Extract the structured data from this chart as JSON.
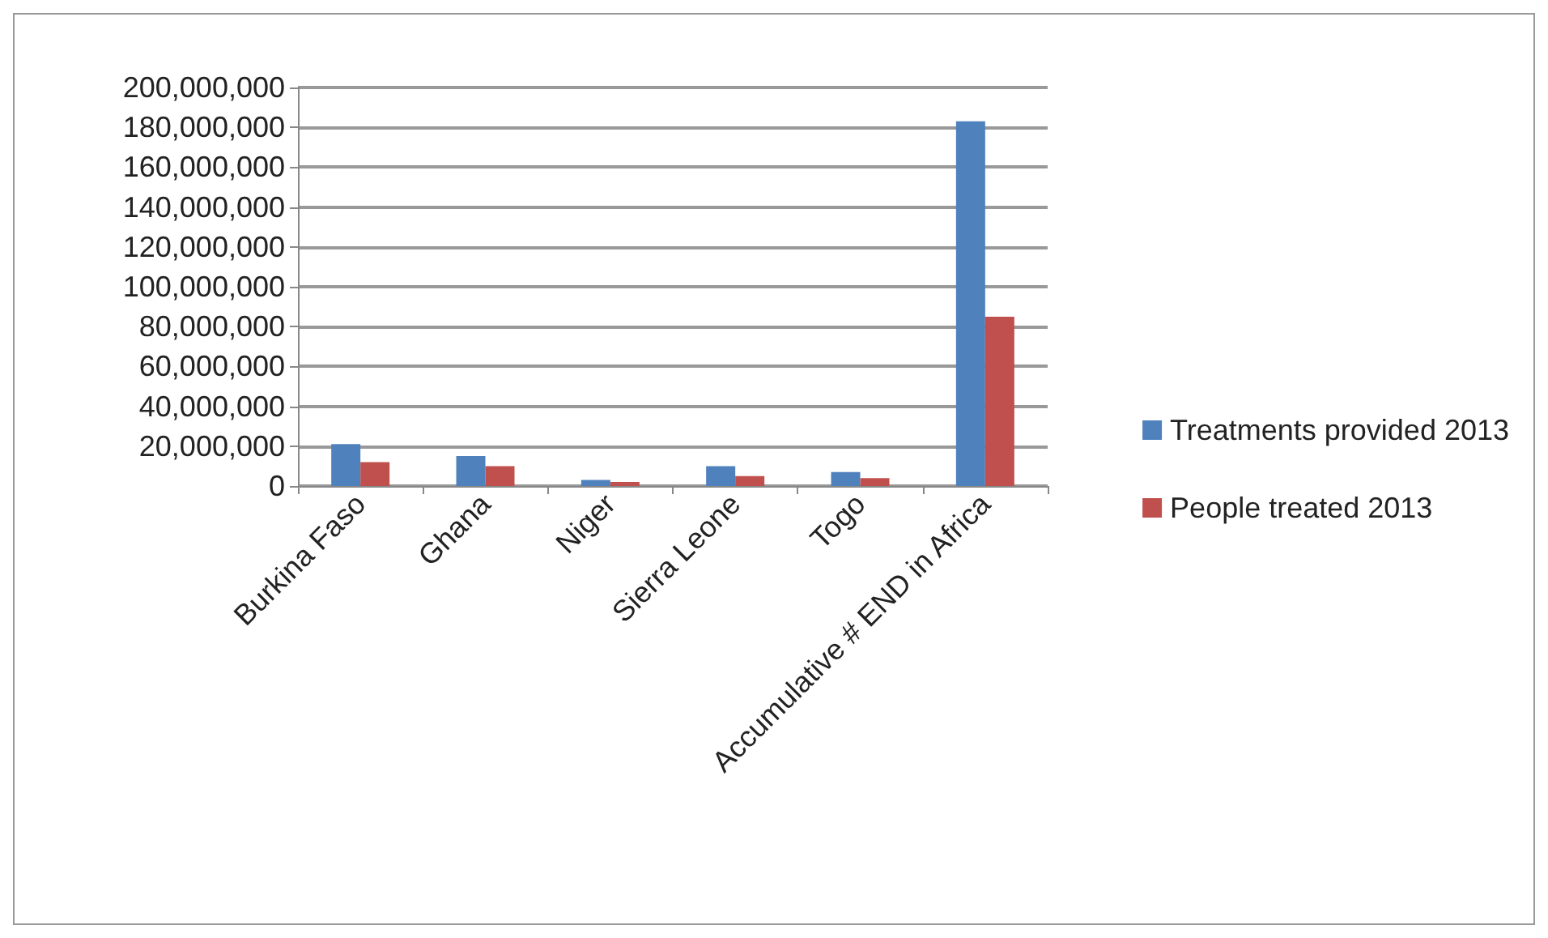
{
  "chart_data": {
    "type": "bar",
    "categories": [
      "Burkina Faso",
      "Ghana",
      "Niger",
      "Sierra Leone",
      "Togo",
      "Accumulative # END in Africa"
    ],
    "series": [
      {
        "name": "Treatments provided 2013",
        "color": "#4f81bd",
        "values": [
          21000000,
          15000000,
          3000000,
          10000000,
          7000000,
          183000000
        ]
      },
      {
        "name": "People treated 2013",
        "color": "#c0504d",
        "values": [
          12000000,
          10000000,
          2000000,
          5000000,
          4000000,
          85000000
        ]
      }
    ],
    "ylim": [
      0,
      200000000
    ],
    "yticks": [
      0,
      {
        "value": 20000000,
        "label": "20,000,000"
      },
      {
        "value": 40000000,
        "label": "40,000,000"
      },
      {
        "value": 60000000,
        "label": "60,000,000"
      },
      {
        "value": 80000000,
        "label": "80,000,000"
      },
      {
        "value": 100000000,
        "label": "100,000,000"
      },
      {
        "value": 120000000,
        "label": "120,000,000"
      },
      {
        "value": 140000000,
        "label": "140,000,000"
      },
      {
        "value": 160000000,
        "label": "160,000,000"
      },
      {
        "value": 180000000,
        "label": "180,000,000"
      },
      {
        "value": 200000000,
        "label": "200,000,000"
      }
    ],
    "grid": "y",
    "legend": "right"
  }
}
